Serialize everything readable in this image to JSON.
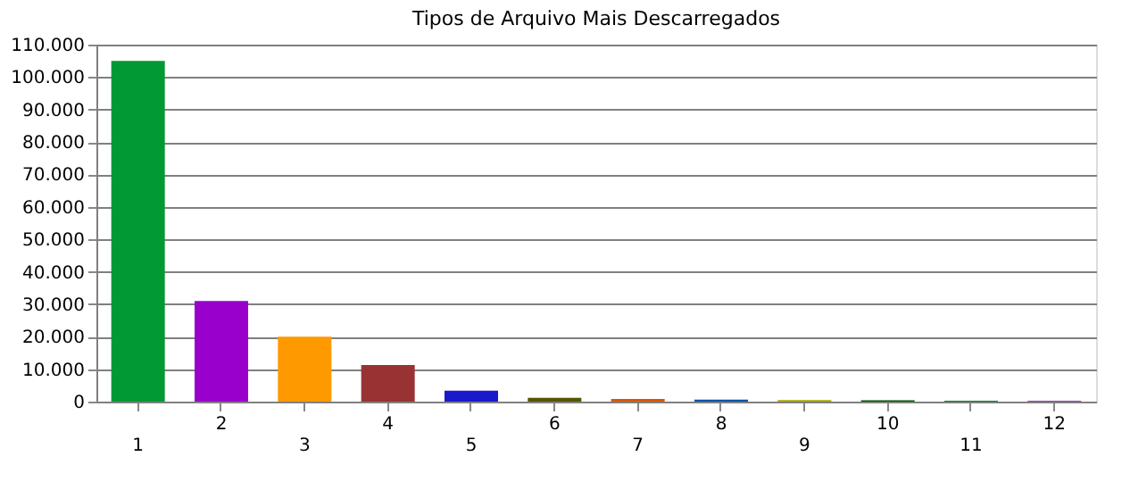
{
  "chart_data": {
    "type": "bar",
    "title": "Tipos de Arquivo Mais Descarregados",
    "categories": [
      "1",
      "2",
      "3",
      "4",
      "5",
      "6",
      "7",
      "8",
      "9",
      "10",
      "11",
      "12"
    ],
    "values": [
      105000,
      31000,
      20000,
      11300,
      3400,
      1200,
      800,
      600,
      500,
      400,
      300,
      200
    ],
    "colors": [
      "#009933",
      "#9900cc",
      "#ff9900",
      "#993333",
      "#1a1acc",
      "#555500",
      "#dd5500",
      "#0055aa",
      "#aaaa00",
      "#005500",
      "#008833",
      "#7700aa"
    ],
    "ylim": [
      0,
      110000
    ],
    "yticks": [
      {
        "value": 0,
        "label": "0"
      },
      {
        "value": 10000,
        "label": "10.000"
      },
      {
        "value": 20000,
        "label": "20.000"
      },
      {
        "value": 30000,
        "label": "30.000"
      },
      {
        "value": 40000,
        "label": "40.000"
      },
      {
        "value": 50000,
        "label": "50.000"
      },
      {
        "value": 60000,
        "label": "60.000"
      },
      {
        "value": 70000,
        "label": "70.000"
      },
      {
        "value": 80000,
        "label": "80.000"
      },
      {
        "value": 90000,
        "label": "90.000"
      },
      {
        "value": 100000,
        "label": "100.000"
      },
      {
        "value": 110000,
        "label": "110.000"
      }
    ],
    "grid": "y"
  }
}
